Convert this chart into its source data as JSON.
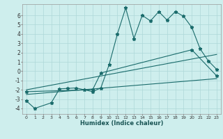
{
  "xlabel": "Humidex (Indice chaleur)",
  "bg_color": "#ceeeed",
  "grid_color": "#aed8d8",
  "line_color": "#1a6b6b",
  "xlim": [
    -0.5,
    23.5
  ],
  "ylim": [
    -4.6,
    7.2
  ],
  "xticks": [
    0,
    1,
    2,
    3,
    4,
    5,
    6,
    7,
    8,
    9,
    10,
    11,
    12,
    13,
    14,
    15,
    16,
    17,
    18,
    19,
    20,
    21,
    22,
    23
  ],
  "yticks": [
    -4,
    -3,
    -2,
    -1,
    0,
    1,
    2,
    3,
    4,
    5,
    6
  ],
  "series": [
    {
      "x": [
        0,
        1,
        3,
        4,
        5,
        6,
        7,
        8,
        9,
        10,
        11,
        12,
        13,
        14,
        15,
        16,
        17,
        18,
        19,
        20,
        21,
        22,
        23
      ],
      "y": [
        -3.2,
        -4.0,
        -3.4,
        -1.9,
        -1.85,
        -1.8,
        -2.0,
        -2.2,
        -1.8,
        0.7,
        4.0,
        6.8,
        3.5,
        6.0,
        5.4,
        6.4,
        5.5,
        6.4,
        5.9,
        4.7,
        2.4,
        1.1,
        0.2
      ],
      "marker": true
    },
    {
      "x": [
        0,
        23
      ],
      "y": [
        -2.5,
        -0.8
      ],
      "marker": false
    },
    {
      "x": [
        0,
        8,
        9,
        20,
        23
      ],
      "y": [
        -2.2,
        -2.0,
        -0.2,
        2.3,
        -0.5
      ],
      "marker": true
    },
    {
      "x": [
        0,
        23
      ],
      "y": [
        -2.0,
        1.8
      ],
      "marker": false
    }
  ]
}
